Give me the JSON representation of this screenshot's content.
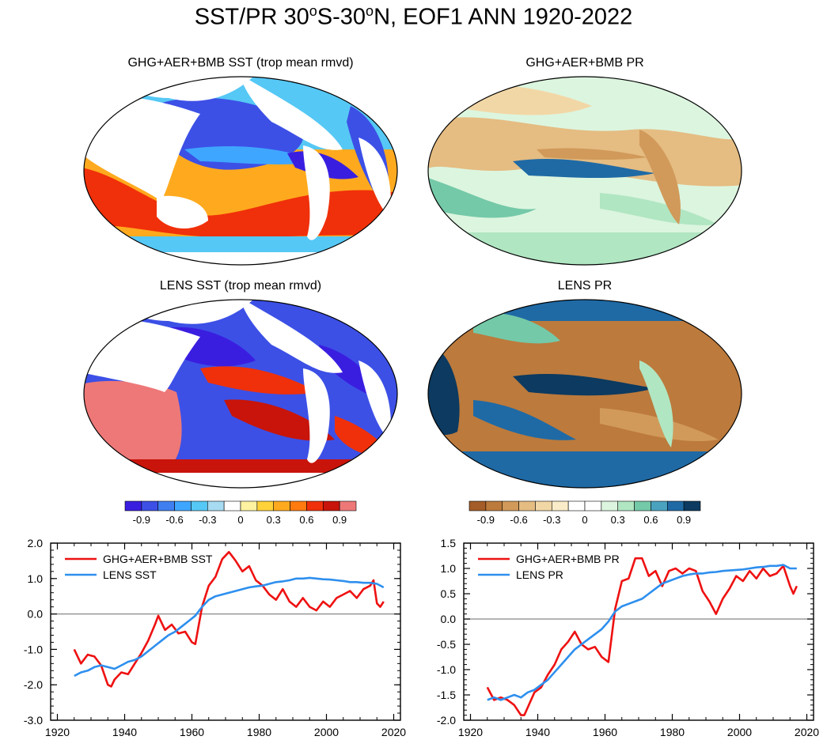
{
  "title_parts": {
    "a": "SST/PR 30",
    "deg1": "o",
    "b": "S-30",
    "deg2": "o",
    "c": "N, EOF1 ANN 1920-2022"
  },
  "maps": [
    {
      "title": "GHG+AER+BMB SST (trop mean rmvd)",
      "kind": "sst"
    },
    {
      "title": "GHG+AER+BMB PR",
      "kind": "pr"
    },
    {
      "title": "LENS SST (trop mean rmvd)",
      "kind": "sst"
    },
    {
      "title": "LENS PR",
      "kind": "pr"
    }
  ],
  "colorbars": [
    {
      "name": "sst-colorbar",
      "colors": [
        "#3a1ee0",
        "#3c50e6",
        "#3f7ff0",
        "#3fa6ff",
        "#56c8f5",
        "#a7dbf2",
        "#ffffff",
        "#fff2a0",
        "#ffd23a",
        "#ffaa1e",
        "#ff7a0f",
        "#f0300a",
        "#c8140a",
        "#ee7878"
      ],
      "labels": [
        "-0.9",
        "-0.6",
        "-0.3",
        "0",
        "0.3",
        "0.6",
        "0.9"
      ]
    },
    {
      "name": "pr-colorbar",
      "colors": [
        "#a45d28",
        "#bc7a3c",
        "#d19a5a",
        "#e5bc82",
        "#f2d7a6",
        "#faecc8",
        "#ffffff",
        "#ffffff",
        "#dcf5df",
        "#b0e6c2",
        "#74c9a8",
        "#4aa2bf",
        "#1f6aa5",
        "#0c3a60"
      ],
      "labels": [
        "-0.9",
        "-0.6",
        "-0.3",
        "0",
        "0.3",
        "0.6",
        "0.9"
      ]
    }
  ],
  "chart_data": [
    {
      "type": "line",
      "name": "sst-timeseries",
      "xlim": [
        1918,
        2022
      ],
      "ylim": [
        -3.0,
        2.0
      ],
      "xticks": [
        "1920",
        "1940",
        "1960",
        "1980",
        "2000",
        "2020"
      ],
      "yticks": [
        "-3.0",
        "-2.0",
        "-1.0",
        "0.0",
        "1.0",
        "2.0"
      ],
      "series": [
        {
          "name": "GHG+AER+BMB SST",
          "color": "#ee1111",
          "x": [
            1925,
            1927,
            1929,
            1931,
            1933,
            1935,
            1936,
            1937,
            1939,
            1941,
            1943,
            1945,
            1947,
            1949,
            1950,
            1952,
            1954,
            1956,
            1958,
            1960,
            1961,
            1963,
            1965,
            1967,
            1969,
            1971,
            1973,
            1975,
            1977,
            1979,
            1981,
            1983,
            1985,
            1987,
            1989,
            1991,
            1993,
            1995,
            1997,
            1999,
            2001,
            2003,
            2005,
            2007,
            2009,
            2011,
            2013,
            2014,
            2015,
            2016,
            2017
          ],
          "values": [
            -1.0,
            -1.4,
            -1.15,
            -1.2,
            -1.45,
            -2.0,
            -2.05,
            -1.85,
            -1.65,
            -1.7,
            -1.4,
            -1.1,
            -0.75,
            -0.3,
            -0.05,
            -0.45,
            -0.3,
            -0.55,
            -0.5,
            -0.8,
            -0.85,
            0.2,
            0.8,
            1.05,
            1.55,
            1.75,
            1.5,
            1.2,
            1.35,
            0.95,
            0.8,
            0.55,
            0.4,
            0.7,
            0.35,
            0.2,
            0.45,
            0.2,
            0.1,
            0.35,
            0.2,
            0.45,
            0.55,
            0.65,
            0.45,
            0.7,
            0.8,
            0.95,
            0.3,
            0.2,
            0.35
          ]
        },
        {
          "name": "LENS SST",
          "color": "#2e8fee",
          "x": [
            1925,
            1927,
            1929,
            1931,
            1933,
            1935,
            1937,
            1939,
            1941,
            1943,
            1945,
            1947,
            1949,
            1951,
            1953,
            1955,
            1957,
            1959,
            1961,
            1963,
            1965,
            1967,
            1969,
            1971,
            1973,
            1975,
            1977,
            1979,
            1981,
            1983,
            1985,
            1987,
            1989,
            1991,
            1993,
            1995,
            1997,
            1999,
            2001,
            2003,
            2005,
            2007,
            2009,
            2011,
            2013,
            2015,
            2017
          ],
          "values": [
            -1.75,
            -1.65,
            -1.6,
            -1.5,
            -1.45,
            -1.5,
            -1.55,
            -1.45,
            -1.35,
            -1.3,
            -1.2,
            -1.05,
            -0.9,
            -0.75,
            -0.6,
            -0.5,
            -0.35,
            -0.2,
            -0.05,
            0.2,
            0.4,
            0.5,
            0.55,
            0.6,
            0.65,
            0.7,
            0.75,
            0.78,
            0.8,
            0.85,
            0.9,
            0.92,
            0.95,
            1.0,
            1.0,
            1.02,
            1.0,
            0.98,
            0.97,
            0.95,
            0.93,
            0.9,
            0.9,
            0.88,
            0.88,
            0.85,
            0.75
          ]
        }
      ]
    },
    {
      "type": "line",
      "name": "pr-timeseries",
      "xlim": [
        1918,
        2022
      ],
      "ylim": [
        -2.0,
        1.5
      ],
      "xticks": [
        "1920",
        "1940",
        "1960",
        "1980",
        "2000",
        "2020"
      ],
      "yticks": [
        "-2.0",
        "-1.5",
        "-1.0",
        "-0.5",
        "0.0",
        "0.5",
        "1.0",
        "1.5"
      ],
      "series": [
        {
          "name": "GHG+AER+BMB PR",
          "color": "#ee1111",
          "x": [
            1925,
            1927,
            1929,
            1931,
            1933,
            1935,
            1936,
            1937,
            1939,
            1941,
            1943,
            1945,
            1947,
            1949,
            1951,
            1953,
            1955,
            1957,
            1959,
            1961,
            1963,
            1965,
            1967,
            1969,
            1971,
            1973,
            1975,
            1977,
            1979,
            1981,
            1983,
            1985,
            1987,
            1989,
            1991,
            1993,
            1995,
            1997,
            1999,
            2001,
            2003,
            2005,
            2007,
            2009,
            2011,
            2013,
            2015,
            2016,
            2017
          ],
          "values": [
            -1.35,
            -1.6,
            -1.55,
            -1.6,
            -1.7,
            -1.9,
            -1.9,
            -1.75,
            -1.45,
            -1.35,
            -1.1,
            -0.9,
            -0.6,
            -0.45,
            -0.25,
            -0.5,
            -0.6,
            -0.55,
            -0.75,
            -0.85,
            0.2,
            0.75,
            0.8,
            1.2,
            1.2,
            0.85,
            0.95,
            0.65,
            0.95,
            1.0,
            0.9,
            1.0,
            0.95,
            0.55,
            0.35,
            0.1,
            0.4,
            0.6,
            0.85,
            0.75,
            0.95,
            0.8,
            1.0,
            0.85,
            0.9,
            1.05,
            0.65,
            0.5,
            0.65
          ]
        },
        {
          "name": "LENS PR",
          "color": "#2e8fee",
          "x": [
            1925,
            1927,
            1929,
            1931,
            1933,
            1935,
            1937,
            1939,
            1941,
            1943,
            1945,
            1947,
            1949,
            1951,
            1953,
            1955,
            1957,
            1959,
            1961,
            1963,
            1965,
            1967,
            1969,
            1971,
            1973,
            1975,
            1977,
            1979,
            1981,
            1983,
            1985,
            1987,
            1989,
            1991,
            1993,
            1995,
            1997,
            1999,
            2001,
            2003,
            2005,
            2007,
            2009,
            2011,
            2013,
            2015,
            2017
          ],
          "values": [
            -1.6,
            -1.55,
            -1.6,
            -1.55,
            -1.5,
            -1.55,
            -1.45,
            -1.4,
            -1.3,
            -1.2,
            -1.05,
            -0.9,
            -0.75,
            -0.6,
            -0.5,
            -0.4,
            -0.3,
            -0.2,
            -0.05,
            0.15,
            0.25,
            0.3,
            0.35,
            0.4,
            0.5,
            0.6,
            0.7,
            0.75,
            0.8,
            0.85,
            0.88,
            0.9,
            0.9,
            0.92,
            0.93,
            0.95,
            0.96,
            0.97,
            0.98,
            1.0,
            1.02,
            1.03,
            1.05,
            1.05,
            1.07,
            1.0,
            1.0
          ]
        }
      ]
    }
  ]
}
